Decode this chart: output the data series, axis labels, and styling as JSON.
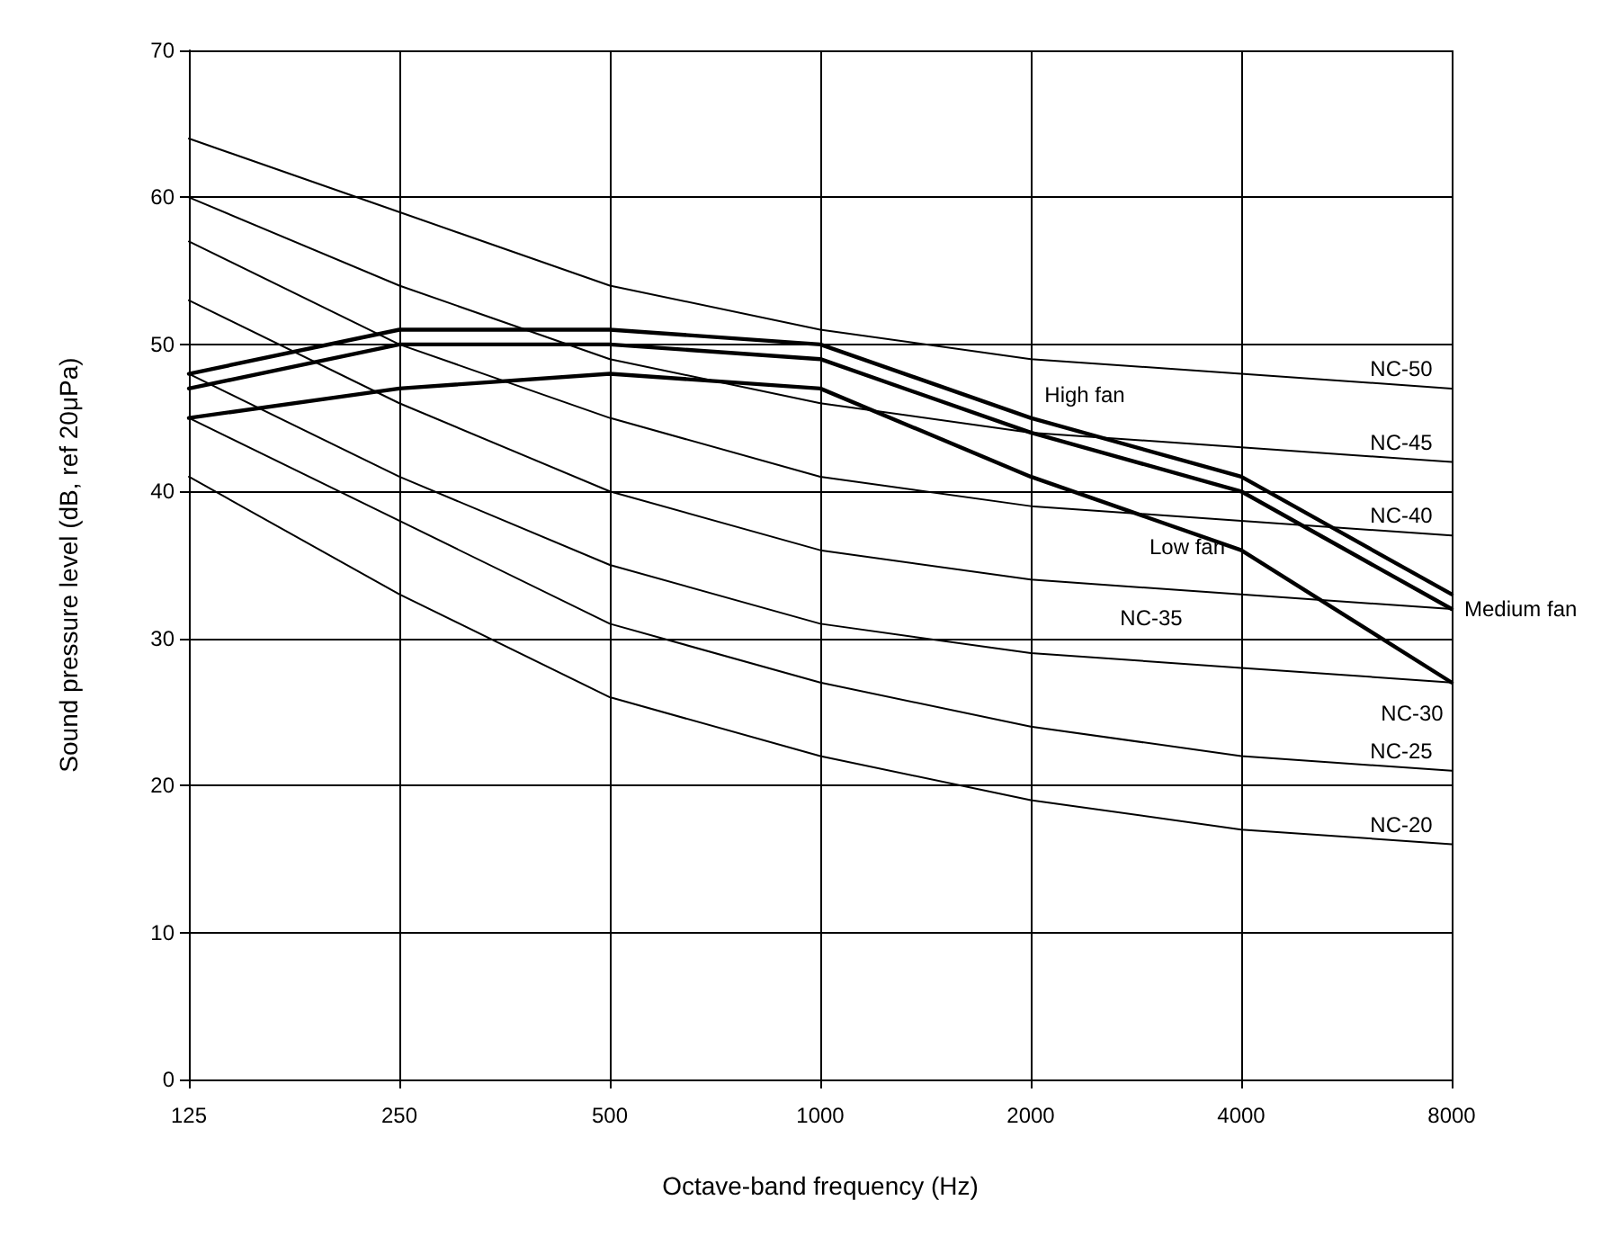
{
  "chart_data": {
    "type": "line",
    "xlabel": "Octave-band frequency (Hz)",
    "ylabel": "Sound pressure level (dB, ref 20μPa)",
    "categories": [
      "125",
      "250",
      "500",
      "1000",
      "2000",
      "4000",
      "8000"
    ],
    "series": [
      {
        "name": "NC-50",
        "color": "#000000",
        "values": [
          64,
          59,
          54,
          51,
          49,
          48,
          47
        ]
      },
      {
        "name": "NC-45",
        "color": "#000000",
        "values": [
          60,
          54,
          49,
          46,
          44,
          43,
          42
        ]
      },
      {
        "name": "NC-40",
        "color": "#000000",
        "values": [
          57,
          50,
          45,
          41,
          39,
          38,
          37
        ]
      },
      {
        "name": "NC-35",
        "color": "#000000",
        "values": [
          53,
          46,
          40,
          36,
          34,
          33,
          32
        ]
      },
      {
        "name": "NC-30",
        "color": "#000000",
        "values": [
          48,
          41,
          35,
          31,
          29,
          28,
          27
        ]
      },
      {
        "name": "NC-25",
        "color": "#000000",
        "values": [
          45,
          38,
          31,
          27,
          24,
          22,
          21
        ]
      },
      {
        "name": "NC-20",
        "color": "#000000",
        "values": [
          41,
          33,
          26,
          22,
          19,
          17,
          16
        ]
      },
      {
        "name": "High fan",
        "color": "#000000",
        "values": [
          48,
          51,
          51,
          50,
          45,
          41,
          33
        ]
      },
      {
        "name": "Medium fan",
        "color": "#000000",
        "values": [
          47,
          50,
          50,
          49,
          44,
          40,
          32
        ]
      },
      {
        "name": "Low fan",
        "color": "#000000",
        "values": [
          45,
          47,
          48,
          47,
          41,
          36,
          27
        ]
      }
    ],
    "ylim": [
      0,
      70
    ],
    "yticks": [
      0,
      10,
      20,
      30,
      40,
      50,
      60,
      70
    ],
    "grid": true,
    "legend": false,
    "marker": "none",
    "line_style": "solid"
  }
}
